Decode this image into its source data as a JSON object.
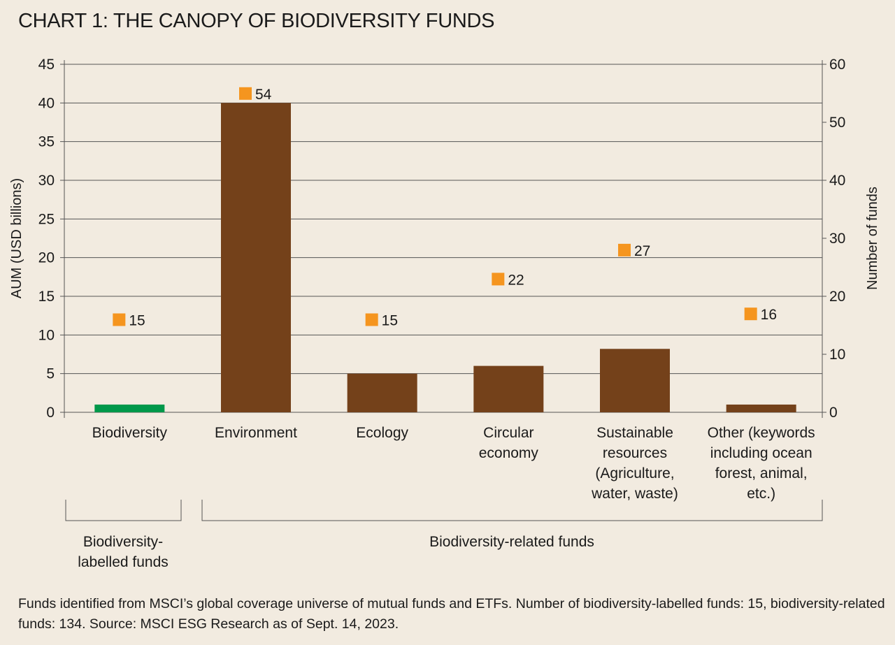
{
  "chart_data": {
    "type": "bar",
    "title": "CHART 1: THE CANOPY OF BIODIVERSITY FUNDS",
    "categories": [
      "Biodiversity",
      "Environment",
      "Ecology",
      "Circular economy",
      "Sustainable resources (Agriculture, water, waste)",
      "Other (keywords including ocean forest, animal, etc.)"
    ],
    "category_label_lines": [
      [
        "Biodiversity"
      ],
      [
        "Environment"
      ],
      [
        "Ecology"
      ],
      [
        "Circular",
        "economy"
      ],
      [
        "Sustainable",
        "resources",
        "(Agriculture,",
        "water, waste)"
      ],
      [
        "Other (keywords",
        "including ocean",
        "forest, animal,",
        "etc.)"
      ]
    ],
    "series": [
      {
        "type": "bar",
        "axis": "left",
        "values": [
          1,
          40,
          5,
          6,
          8.2,
          1
        ],
        "colors": [
          "#00984a",
          "#74411a",
          "#74411a",
          "#74411a",
          "#74411a",
          "#74411a"
        ]
      },
      {
        "type": "marker",
        "axis": "right",
        "values": [
          15,
          54,
          15,
          22,
          27,
          16
        ],
        "labels": [
          "15",
          "54",
          "15",
          "22",
          "27",
          "16"
        ],
        "color": "#f5951f"
      }
    ],
    "ylabel": "AUM (USD billions)",
    "ylim": [
      0,
      45
    ],
    "yticks": [
      "0",
      "5",
      "10",
      "15",
      "20",
      "25",
      "30",
      "35",
      "40",
      "45"
    ],
    "y2label": "Number of funds",
    "y2lim": [
      0,
      60
    ],
    "y2ticks": [
      "0",
      "10",
      "20",
      "30",
      "40",
      "50",
      "60"
    ],
    "grid": true,
    "groups": [
      {
        "label_lines": [
          "Biodiversity-",
          "labelled funds"
        ],
        "categories": [
          0,
          0
        ]
      },
      {
        "label_lines": [
          "Biodiversity-related funds"
        ],
        "categories": [
          1,
          5
        ]
      }
    ]
  },
  "footnote": "Funds identified from MSCI’s global coverage universe of mutual funds and ETFs. Number of biodiversity-labelled funds: 15, biodiversity-related funds: 134. Source: MSCI ESG Research as of Sept. 14, 2023."
}
